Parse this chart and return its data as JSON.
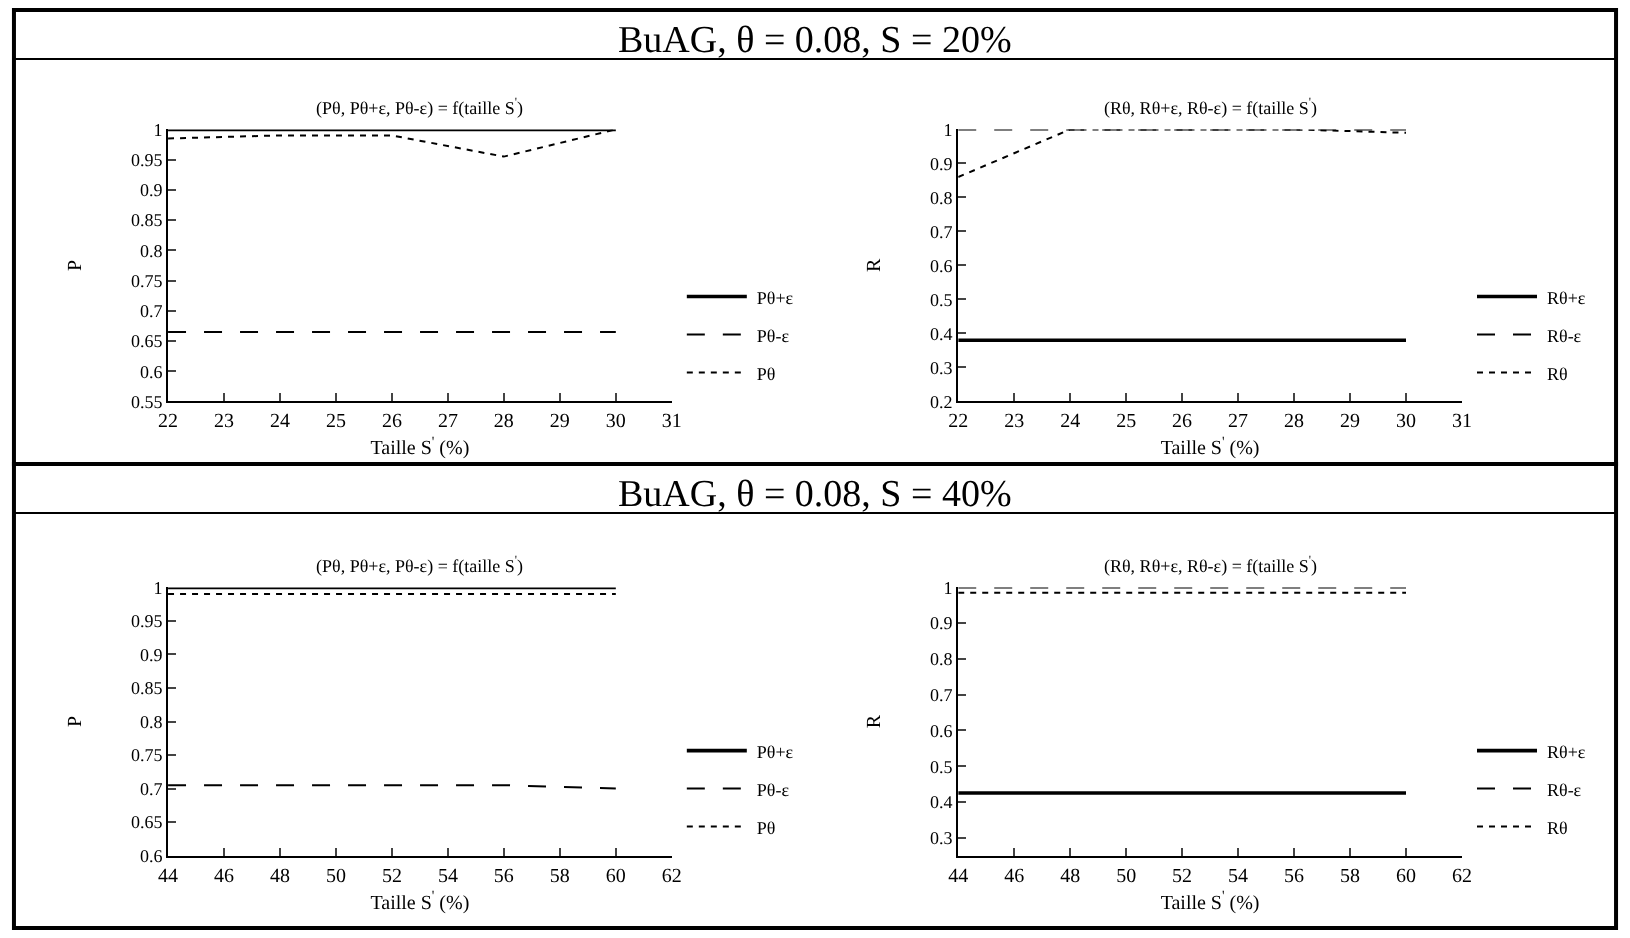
{
  "chart_data": [
    {
      "type": "line",
      "title": "(Pθ, Pθ+ε, Pθ-ε) = f(taille S$^{'}$)",
      "annotations": [
        "BuAG, θ = 0.08, S = 20%"
      ],
      "xlabel": "Taille S$^{'}$ (%)",
      "ylabel": "P",
      "x": [
        22,
        24,
        26,
        28,
        30
      ],
      "xlim": [
        22,
        31
      ],
      "xticks": [
        22,
        23,
        24,
        25,
        26,
        27,
        28,
        29,
        30,
        31
      ],
      "ylim": [
        0.55,
        1
      ],
      "yticks": [
        0.55,
        0.6,
        0.65,
        0.7,
        0.75,
        0.8,
        0.85,
        0.9,
        0.95,
        1
      ],
      "legend": "right",
      "marker": "none",
      "series": [
        {
          "name": "Pθ+ε",
          "color": "#000000",
          "line_style": "solid",
          "values": [
            1,
            1,
            1,
            1,
            1
          ]
        },
        {
          "name": "Pθ-ε",
          "color": "#000000",
          "line_style": "dashed",
          "values": [
            0.665,
            0.665,
            0.665,
            0.665,
            0.665
          ]
        },
        {
          "name": "Pθ",
          "color": "#000000",
          "line_style": "dotted",
          "values": [
            0.985,
            0.99,
            0.99,
            0.955,
            1
          ]
        }
      ]
    },
    {
      "type": "line",
      "title": "(Rθ, Rθ+ε, Rθ-ε) = f(taille S$^{'}$)",
      "xlabel": "Taille S$^{'}$ (%)",
      "ylabel": "R",
      "x": [
        22,
        24,
        26,
        28,
        30
      ],
      "xlim": [
        22,
        31
      ],
      "xticks": [
        22,
        23,
        24,
        25,
        26,
        27,
        28,
        29,
        30,
        31
      ],
      "ylim": [
        0.2,
        1
      ],
      "yticks": [
        0.2,
        0.3,
        0.4,
        0.5,
        0.6,
        0.7,
        0.8,
        0.9,
        1
      ],
      "legend": "right",
      "marker": "none",
      "series": [
        {
          "name": "Rθ+ε",
          "color": "#000000",
          "line_style": "solid",
          "values": [
            0.38,
            0.38,
            0.38,
            0.38,
            0.38
          ]
        },
        {
          "name": "Rθ-ε",
          "color": "#000000",
          "line_style": "dashed",
          "values": [
            1,
            1,
            1,
            1,
            1
          ]
        },
        {
          "name": "Rθ",
          "color": "#000000",
          "line_style": "dotted",
          "values": [
            0.86,
            1,
            1,
            1,
            0.99
          ]
        }
      ]
    },
    {
      "type": "line",
      "title": "(Pθ, Pθ+ε, Pθ-ε) = f(taille S$^{'}$)",
      "annotations": [
        "BuAG, θ = 0.08, S = 40%"
      ],
      "xlabel": "Taille S$^{'}$ (%)",
      "ylabel": "P",
      "x": [
        44,
        48,
        52,
        56,
        60
      ],
      "xlim": [
        44,
        62
      ],
      "xticks": [
        44,
        46,
        48,
        50,
        52,
        54,
        56,
        58,
        60,
        62
      ],
      "ylim": [
        0.6,
        1
      ],
      "yticks": [
        0.6,
        0.65,
        0.7,
        0.75,
        0.8,
        0.85,
        0.9,
        0.95,
        1
      ],
      "legend": "right",
      "marker": "none",
      "series": [
        {
          "name": "Pθ+ε",
          "color": "#000000",
          "line_style": "solid",
          "values": [
            1,
            1,
            1,
            1,
            1
          ]
        },
        {
          "name": "Pθ-ε",
          "color": "#000000",
          "line_style": "dashed",
          "values": [
            0.705,
            0.705,
            0.705,
            0.705,
            0.7
          ]
        },
        {
          "name": "Pθ",
          "color": "#000000",
          "line_style": "dotted",
          "values": [
            0.99,
            0.99,
            0.99,
            0.99,
            0.99
          ]
        }
      ]
    },
    {
      "type": "line",
      "title": "(Rθ, Rθ+ε, Rθ-ε) = f(taille S$^{'}$)",
      "xlabel": "Taille S$^{'}$ (%)",
      "ylabel": "R",
      "x": [
        44,
        48,
        52,
        56,
        60
      ],
      "xlim": [
        44,
        62
      ],
      "xticks": [
        44,
        46,
        48,
        50,
        52,
        54,
        56,
        58,
        60,
        62
      ],
      "ylim": [
        0.25,
        1
      ],
      "yticks": [
        0.3,
        0.4,
        0.5,
        0.6,
        0.7,
        0.8,
        0.9,
        1
      ],
      "legend": "right",
      "marker": "none",
      "series": [
        {
          "name": "Rθ+ε",
          "color": "#000000",
          "line_style": "solid",
          "values": [
            0.425,
            0.425,
            0.425,
            0.425,
            0.425
          ]
        },
        {
          "name": "Rθ-ε",
          "color": "#000000",
          "line_style": "dashed",
          "values": [
            1,
            1,
            1,
            1,
            1
          ]
        },
        {
          "name": "Rθ",
          "color": "#000000",
          "line_style": "dotted",
          "values": [
            0.985,
            0.985,
            0.985,
            0.985,
            0.985
          ]
        }
      ]
    }
  ]
}
